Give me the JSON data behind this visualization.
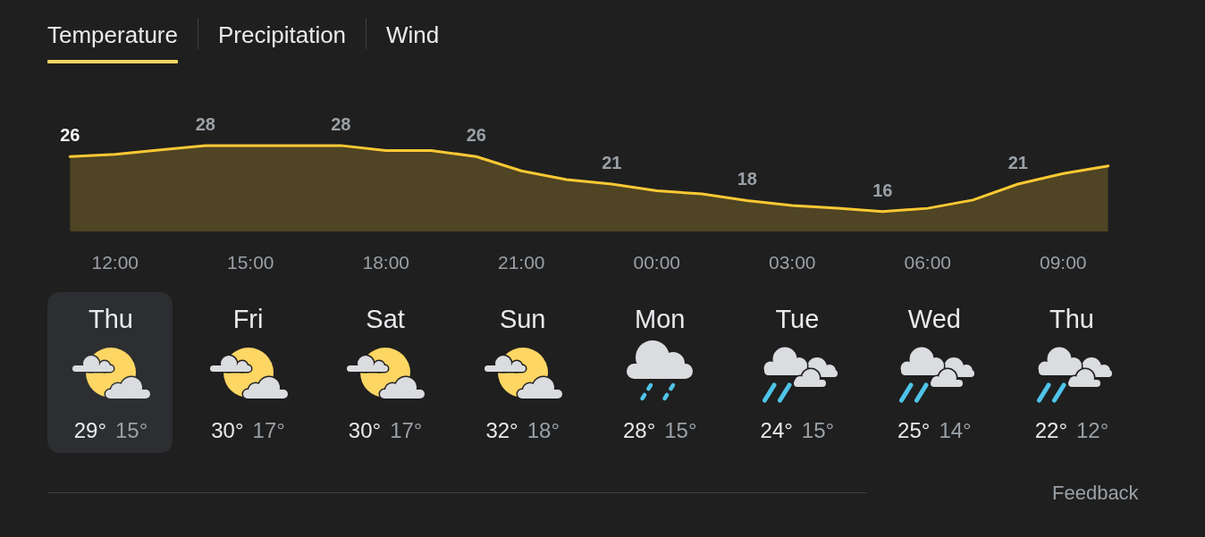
{
  "chart_data": [
    {
      "type": "area",
      "title": "Temperature",
      "annotations": [
        "Precipitation",
        "Wind"
      ],
      "categories": [
        null,
        "12:00",
        null,
        null,
        "15:00",
        null,
        null,
        "18:00",
        null,
        null,
        "21:00",
        null,
        null,
        "00:00",
        null,
        null,
        "03:00",
        null,
        null,
        "06:00",
        null,
        null,
        "09:00",
        null
      ],
      "values": [
        26,
        26.4,
        27.2,
        28,
        28,
        28,
        28,
        27.1,
        27.1,
        26,
        23.4,
        21.8,
        21,
        19.8,
        19.2,
        18,
        17.1,
        16.6,
        16,
        16.6,
        18.1,
        21,
        22.9,
        24.3
      ],
      "value_labels": [
        "26",
        null,
        null,
        "28",
        null,
        null,
        "28",
        null,
        null,
        "26",
        null,
        null,
        "21",
        null,
        null,
        "18",
        null,
        null,
        "16",
        null,
        null,
        "21",
        null,
        null
      ],
      "color": "#fcc934",
      "marker": "none",
      "line_style": "solid",
      "tick_labels": "x"
    },
    {
      "type": "other",
      "categories": [
        "Thu",
        "Fri",
        "Sat",
        "Sun",
        "Mon",
        "Tue",
        "Wed",
        "Thu"
      ],
      "annotations": [
        "29°",
        "15°",
        "30°",
        "17°",
        "30°",
        "17°",
        "32°",
        "18°",
        "28°",
        "15°",
        "24°",
        "15°",
        "25°",
        "14°",
        "22°",
        "12°",
        "Feedback"
      ]
    }
  ]
}
